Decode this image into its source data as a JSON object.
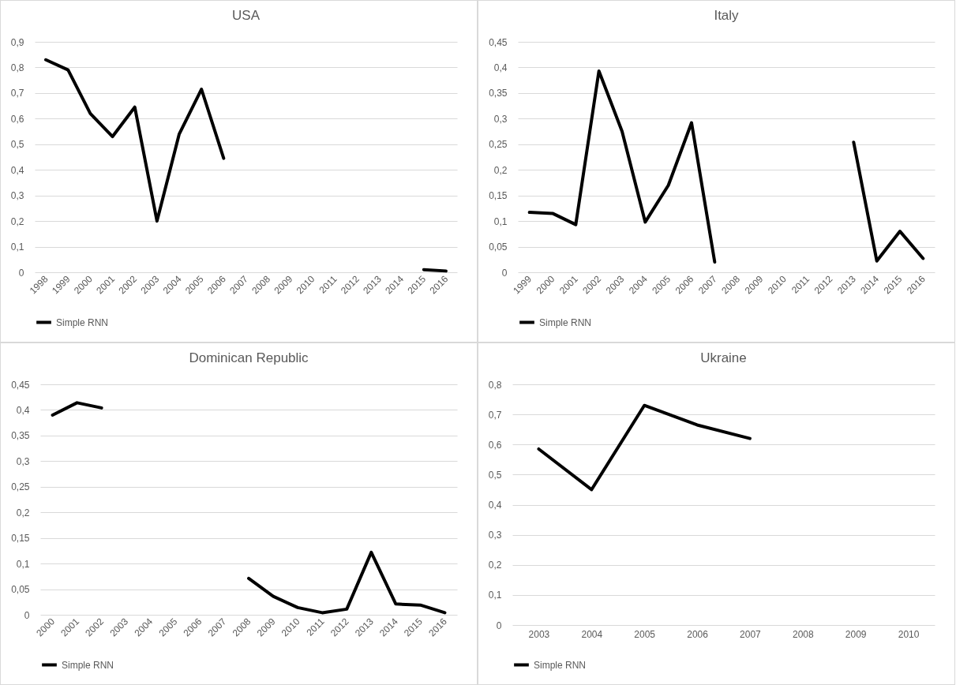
{
  "chart_data": [
    {
      "type": "line",
      "title": "USA",
      "categories": [
        "1998",
        "1999",
        "2000",
        "2001",
        "2002",
        "2003",
        "2004",
        "2005",
        "2006",
        "2007",
        "2008",
        "2009",
        "2010",
        "2011",
        "2012",
        "2013",
        "2014",
        "2015",
        "2016"
      ],
      "series": [
        {
          "name": "Simple RNN",
          "color": "#000000",
          "values": [
            0.83,
            0.79,
            0.62,
            0.53,
            0.645,
            0.2,
            0.54,
            0.715,
            0.445,
            null,
            null,
            null,
            null,
            null,
            null,
            null,
            null,
            0.01,
            0.005
          ]
        }
      ],
      "ylim": [
        0,
        0.9
      ],
      "yticks": [
        {
          "value": 0,
          "label": "0"
        },
        {
          "value": 0.1,
          "label": "0,1"
        },
        {
          "value": 0.2,
          "label": "0,2"
        },
        {
          "value": 0.3,
          "label": "0,3"
        },
        {
          "value": 0.4,
          "label": "0,4"
        },
        {
          "value": 0.5,
          "label": "0,5"
        },
        {
          "value": 0.6,
          "label": "0,6"
        },
        {
          "value": 0.7,
          "label": "0,7"
        },
        {
          "value": 0.8,
          "label": "0,8"
        },
        {
          "value": 0.9,
          "label": "0,9"
        }
      ],
      "grid": "y",
      "legend": "bottom",
      "marker": "none"
    },
    {
      "type": "line",
      "title": "Italy",
      "categories": [
        "1999",
        "2000",
        "2001",
        "2002",
        "2003",
        "2004",
        "2005",
        "2006",
        "2007",
        "2008",
        "2009",
        "2010",
        "2011",
        "2012",
        "2013",
        "2014",
        "2015",
        "2016"
      ],
      "series": [
        {
          "name": "Simple RNN",
          "color": "#000000",
          "values": [
            0.117,
            0.115,
            0.093,
            0.393,
            0.275,
            0.098,
            0.17,
            0.292,
            0.02,
            null,
            null,
            null,
            null,
            null,
            0.254,
            0.022,
            0.08,
            0.027
          ]
        }
      ],
      "ylim": [
        0,
        0.45
      ],
      "yticks": [
        {
          "value": 0,
          "label": "0"
        },
        {
          "value": 0.05,
          "label": "0,05"
        },
        {
          "value": 0.1,
          "label": "0,1"
        },
        {
          "value": 0.15,
          "label": "0,15"
        },
        {
          "value": 0.2,
          "label": "0,2"
        },
        {
          "value": 0.25,
          "label": "0,25"
        },
        {
          "value": 0.3,
          "label": "0,3"
        },
        {
          "value": 0.35,
          "label": "0,35"
        },
        {
          "value": 0.4,
          "label": "0,4"
        },
        {
          "value": 0.45,
          "label": "0,45"
        }
      ],
      "grid": "y",
      "legend": "bottom",
      "marker": "none"
    },
    {
      "type": "line",
      "title": "Dominican Republic",
      "categories": [
        "2000",
        "2001",
        "2002",
        "2003",
        "2004",
        "2005",
        "2006",
        "2007",
        "2008",
        "2009",
        "2010",
        "2011",
        "2012",
        "2013",
        "2014",
        "2015",
        "2016"
      ],
      "series": [
        {
          "name": "Simple RNN",
          "color": "#000000",
          "values": [
            0.39,
            0.414,
            0.404,
            null,
            null,
            null,
            null,
            null,
            0.071,
            0.036,
            0.014,
            0.004,
            0.011,
            0.122,
            0.021,
            0.019,
            0.004
          ]
        }
      ],
      "ylim": [
        0,
        0.45
      ],
      "yticks": [
        {
          "value": 0,
          "label": "0"
        },
        {
          "value": 0.05,
          "label": "0,05"
        },
        {
          "value": 0.1,
          "label": "0,1"
        },
        {
          "value": 0.15,
          "label": "0,15"
        },
        {
          "value": 0.2,
          "label": "0,2"
        },
        {
          "value": 0.25,
          "label": "0,25"
        },
        {
          "value": 0.3,
          "label": "0,3"
        },
        {
          "value": 0.35,
          "label": "0,35"
        },
        {
          "value": 0.4,
          "label": "0,4"
        },
        {
          "value": 0.45,
          "label": "0,45"
        }
      ],
      "grid": "y",
      "legend": "bottom",
      "marker": "none"
    },
    {
      "type": "line",
      "title": "Ukraine",
      "categories": [
        "2003",
        "2004",
        "2005",
        "2006",
        "2007",
        "2008",
        "2009",
        "2010"
      ],
      "series": [
        {
          "name": "Simple RNN",
          "color": "#000000",
          "values": [
            0.585,
            0.45,
            0.73,
            0.665,
            0.62,
            null,
            null,
            null
          ]
        }
      ],
      "ylim": [
        0,
        0.8
      ],
      "yticks": [
        {
          "value": 0,
          "label": "0"
        },
        {
          "value": 0.1,
          "label": "0,1"
        },
        {
          "value": 0.2,
          "label": "0,2"
        },
        {
          "value": 0.3,
          "label": "0,3"
        },
        {
          "value": 0.4,
          "label": "0,4"
        },
        {
          "value": 0.5,
          "label": "0,5"
        },
        {
          "value": 0.6,
          "label": "0,6"
        },
        {
          "value": 0.7,
          "label": "0,7"
        },
        {
          "value": 0.8,
          "label": "0,8"
        }
      ],
      "grid": "y",
      "legend": "bottom",
      "marker": "none"
    }
  ]
}
